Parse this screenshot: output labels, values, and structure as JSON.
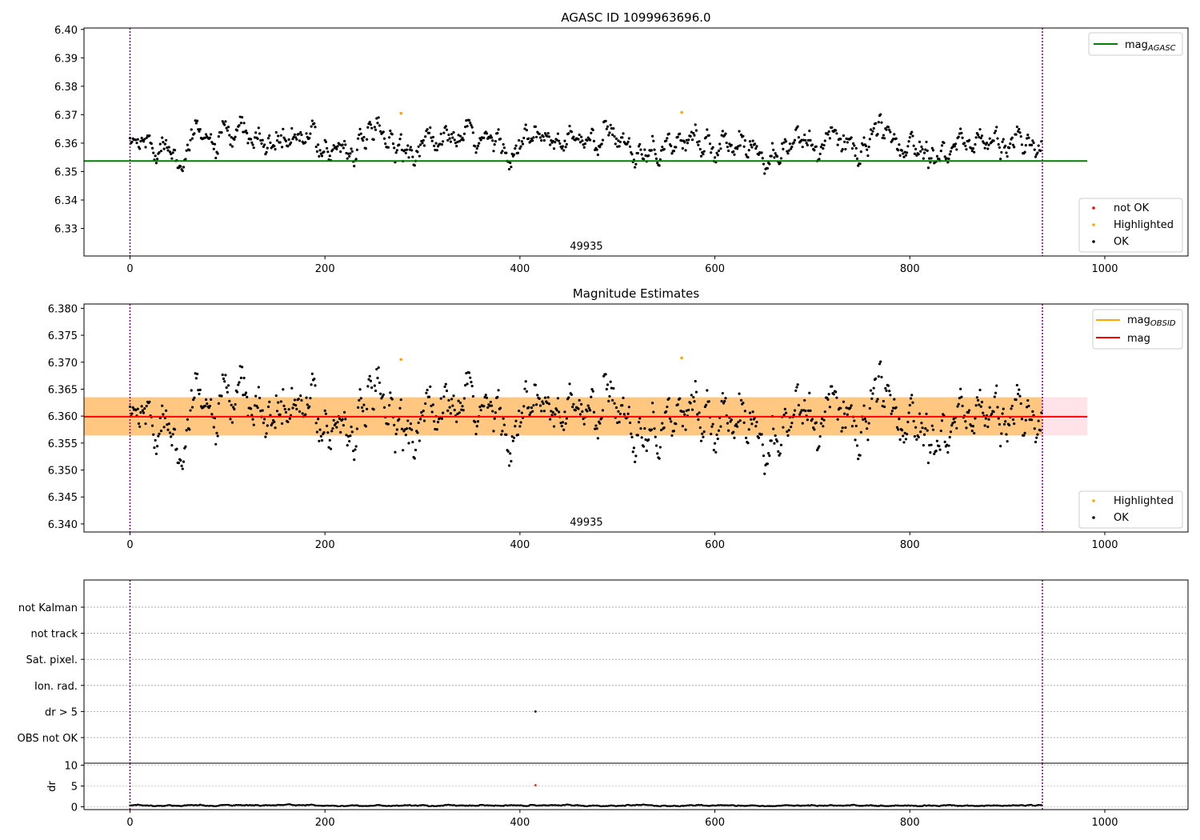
{
  "chart_data": [
    {
      "type": "scatter",
      "title": "AGASC ID 1099963696.0",
      "xlim": [
        -47,
        1085
      ],
      "ylim": [
        6.3203,
        6.4005
      ],
      "xticks": [
        "0",
        "200",
        "400",
        "600",
        "800",
        "1000"
      ],
      "yticks": [
        "6.33",
        "6.34",
        "6.35",
        "6.36",
        "6.37",
        "6.38",
        "6.39",
        "6.40"
      ],
      "annotation": "49935",
      "vlines": [
        0,
        936
      ],
      "hline": {
        "name": "mag_AGASC",
        "y": 6.3537,
        "x": [
          -47,
          982
        ],
        "color": "#008000"
      },
      "series": [
        {
          "name": "not OK",
          "color": "#ff0000",
          "points": []
        },
        {
          "name": "Highlighted",
          "color": "#ffa500",
          "points": [
            [
              278,
              6.3705
            ],
            [
              566,
              6.3708
            ]
          ]
        },
        {
          "name": "OK",
          "color": "#000000",
          "n_points": 936,
          "mean": 6.3599,
          "std": 0.0033
        }
      ],
      "legends": [
        {
          "position": "upper right",
          "entries": [
            "mag_AGASC"
          ]
        },
        {
          "position": "lower right",
          "entries": [
            "not OK",
            "Highlighted",
            "OK"
          ]
        }
      ]
    },
    {
      "type": "scatter",
      "title": "Magnitude Estimates",
      "xlim": [
        -47,
        1085
      ],
      "ylim": [
        6.3385,
        6.3808
      ],
      "xticks": [
        "0",
        "200",
        "400",
        "600",
        "800",
        "1000"
      ],
      "yticks": [
        "6.340",
        "6.345",
        "6.350",
        "6.355",
        "6.360",
        "6.365",
        "6.370",
        "6.375",
        "6.380"
      ],
      "annotation": "49935",
      "vlines": [
        0,
        936
      ],
      "bands": [
        {
          "name": "mag range",
          "y": [
            6.3564,
            6.3635
          ],
          "x": [
            -47,
            982
          ],
          "color": "#ffc0cb"
        },
        {
          "name": "mag_OBSID range",
          "y": [
            6.3564,
            6.3635
          ],
          "x": [
            -47,
            936
          ],
          "color": "#ffa500"
        }
      ],
      "lines": [
        {
          "name": "mag_OBSID",
          "y": 6.3599,
          "color": "#ffa500"
        },
        {
          "name": "mag",
          "y": 6.3599,
          "color": "#ff0000"
        }
      ],
      "series": [
        {
          "name": "Highlighted",
          "color": "#ffa500",
          "points": [
            [
              278,
              6.3705
            ],
            [
              566,
              6.3708
            ]
          ]
        },
        {
          "name": "OK",
          "color": "#000000",
          "n_points": 936,
          "mean": 6.3599,
          "std": 0.0033
        }
      ],
      "legends": [
        {
          "position": "upper right",
          "entries": [
            "mag_OBSID",
            "mag"
          ]
        },
        {
          "position": "lower right",
          "entries": [
            "Highlighted",
            "OK"
          ]
        }
      ]
    },
    {
      "type": "scatter",
      "title": "",
      "xlim": [
        -47,
        1085
      ],
      "categories": [
        "not Kalman",
        "not track",
        "Sat. pixel.",
        "Ion. rad.",
        "dr > 5",
        "OBS not OK"
      ],
      "flag_points": [
        {
          "category": "dr > 5",
          "x": 416
        }
      ],
      "vlines": [
        0,
        936
      ]
    },
    {
      "type": "scatter",
      "title": "",
      "ylabel": "dr",
      "xlim": [
        -47,
        1085
      ],
      "ylim": [
        -0.5,
        10.2
      ],
      "xticks": [
        "0",
        "200",
        "400",
        "600",
        "800",
        "1000"
      ],
      "yticks": [
        "0",
        "5",
        "10"
      ],
      "vlines": [
        0,
        936
      ],
      "series": [
        {
          "name": "OK",
          "color": "#000000",
          "n_points": 936,
          "mean": 0.3,
          "std": 0.1
        },
        {
          "name": "not OK",
          "color": "#ff0000",
          "points": [
            [
              416,
              5.2
            ]
          ]
        }
      ]
    }
  ],
  "legend_text": {
    "p1_mag_base": "mag",
    "p1_mag_sub": "AGASC",
    "p1_not_ok": "not OK",
    "p1_highlighted": "Highlighted",
    "p1_ok": "OK",
    "p2_magobs_base": "mag",
    "p2_magobs_sub": "OBSID",
    "p2_mag": "mag",
    "p2_highlighted": "Highlighted",
    "p2_ok": "OK"
  }
}
